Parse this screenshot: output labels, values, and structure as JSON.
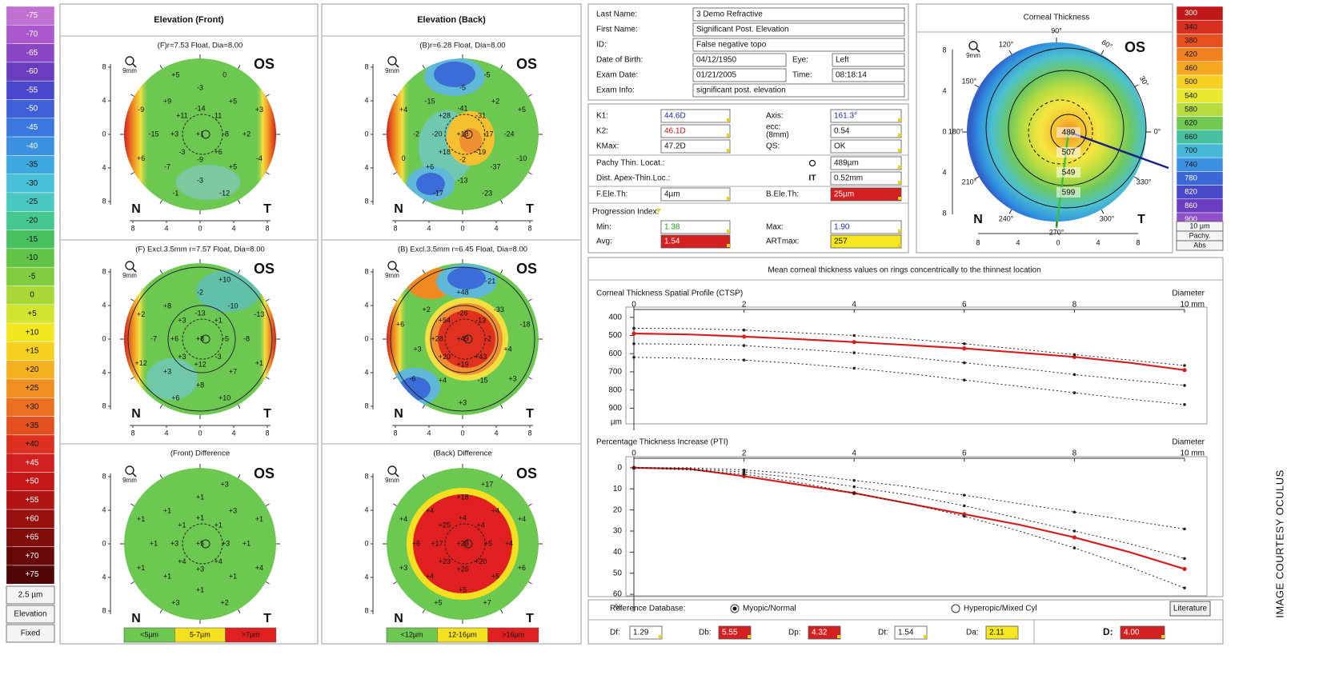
{
  "elevation_scale": {
    "steps": [
      "-75",
      "-70",
      "-65",
      "-60",
      "-55",
      "-50",
      "-45",
      "-40",
      "-35",
      "-30",
      "-25",
      "-20",
      "-15",
      "-10",
      "-5",
      "0",
      "+5",
      "+10",
      "+15",
      "+20",
      "+25",
      "+30",
      "+35",
      "+40",
      "+45",
      "+50",
      "+55",
      "+60",
      "+65",
      "+70",
      "+75"
    ],
    "unit": "2.5 µm",
    "mode": "Elevation",
    "scaling": "Fixed"
  },
  "maps_common": {
    "eye": "OS",
    "nasal": "N",
    "temporal": "T",
    "zoom": "9mm",
    "ticks": [
      "8",
      "4",
      "0",
      "4",
      "8"
    ]
  },
  "map_columns": [
    {
      "header": "Elevation (Front)"
    },
    {
      "header": "Elevation (Back)"
    }
  ],
  "maps": [
    {
      "subtitle": "(F)r=7.53 Float, Dia=8.00",
      "labels": [
        "+1",
        "-14",
        "11",
        "-8",
        "+6",
        "-9",
        "-3",
        "+3",
        "+11",
        "-3",
        "0",
        "+5",
        "+3",
        "+2",
        "-4",
        "+5",
        "-12",
        "-3",
        "-1",
        "-7",
        "+6",
        "-15",
        "-9",
        "+9",
        "+5"
      ]
    },
    {
      "subtitle": "(B)r=6.28 Float, Dia=8.00",
      "labels": [
        "+18",
        "-41",
        "-31",
        "-17",
        "-19",
        "-2",
        "+18",
        "-20",
        "+28",
        "-5",
        "-5",
        "+2",
        "+5",
        "-24",
        "-10",
        "-37",
        "-23",
        "-13",
        "-17",
        "+6",
        "0",
        "-2",
        "+4",
        "-15"
      ]
    },
    {
      "subtitle": "(F) Excl.3.5mm r=7.57 Float, Dia=8.00",
      "labels": [
        "+8",
        "-13",
        "+1",
        "-5",
        "-3",
        "+12",
        "+3",
        "+6",
        "+3",
        "-2",
        "+10",
        "-10",
        "-13",
        "-8",
        "+1",
        "+7",
        "+10",
        "+8",
        "+6",
        "+3",
        "+12",
        "-7",
        "+2",
        "+8"
      ]
    },
    {
      "subtitle": "(B) Excl.3.5mm r=6.45 Float, Dia=8.00",
      "labels": [
        "+49",
        "-26",
        "-13",
        "-2",
        "+43",
        "+19",
        "+20",
        "+28",
        "+54",
        "+48",
        "-21",
        "-33",
        "-18",
        "+4",
        "+3",
        "-15",
        "+3",
        "+4",
        "-6",
        "+3",
        "+6",
        "+2"
      ]
    },
    {
      "subtitle": "(Front) Difference",
      "labels": [
        "+5",
        "+1",
        "+1",
        "+3",
        "+4",
        "+3",
        "+4",
        "+3",
        "+1",
        "+1",
        "+3",
        "+3",
        "+1",
        "+1",
        "+4",
        "+1",
        "+2",
        "+1",
        "+3",
        "+1",
        "+1",
        "+1",
        "+1",
        "+1"
      ]
    },
    {
      "subtitle": "(Back) Difference",
      "labels": [
        "+28",
        "+4",
        "+4",
        "+5",
        "+20",
        "+26",
        "+23",
        "+17",
        "+25",
        "+18",
        "+17",
        "+4",
        "+4",
        "+4",
        "+6",
        "+5",
        "+7",
        "+5",
        "+5",
        "+4",
        "+3",
        "+6",
        "+4",
        "+4"
      ]
    }
  ],
  "difference_legends": [
    [
      "<5µm",
      "5-7µm",
      ">7µm"
    ],
    [
      "<12µm",
      "12-16µm",
      ">16µm"
    ]
  ],
  "patient": [
    {
      "label": "Last Name:",
      "value": "3 Demo Refractive"
    },
    {
      "label": "First Name:",
      "value": "Significant Post. Elevation"
    },
    {
      "label": "ID:",
      "value": "False negative topo"
    },
    {
      "label": "Date of Birth:",
      "value": "04/12/1950",
      "label2": "Eye:",
      "value2": "Left"
    },
    {
      "label": "Exam Date:",
      "value": "01/21/2005",
      "label2": "Time:",
      "value2": "08:18:14"
    },
    {
      "label": "Exam Info:",
      "value": "significant post. elevation"
    }
  ],
  "indices": {
    "keratometry": [
      {
        "label": "K1:",
        "value": "44.6D",
        "label2": "Axis:",
        "value2": "161.3°"
      },
      {
        "label": "K2:",
        "value": "46.1D",
        "label2": "ecc:",
        "note2": "(8mm)",
        "value2": "0.54"
      },
      {
        "label": "KMax:",
        "value": "47.2D",
        "label2": "QS:",
        "value2": "OK"
      }
    ],
    "pachymetry": [
      {
        "label": "Pachy Thin. Locat.:",
        "value": "489µm"
      },
      {
        "label": "Dist. Apex-Thin.Loc.:",
        "symbol": "IT",
        "value": "0.52mm"
      }
    ],
    "elevation": {
      "label": "F.Ele.Th:",
      "value": "4µm",
      "label2": "B.Ele.Th:",
      "value2": "25µm"
    },
    "progression": {
      "title": "Progression Index:",
      "rows": [
        {
          "label": "Min:",
          "value": "1.38",
          "label2": "Max:",
          "value2": "1.90"
        },
        {
          "label": "Avg:",
          "value": "1.54",
          "label2": "ARTmax:",
          "value2": "257"
        }
      ]
    }
  },
  "corneal_thickness": {
    "title": "Corneal Thickness",
    "eye": "OS",
    "nasal": "N",
    "temporal": "T",
    "zoom": "9mm",
    "ticks": [
      "8",
      "4",
      "0",
      "4",
      "8"
    ],
    "angles": [
      "90°",
      "60°",
      "30°",
      "0°",
      "330°",
      "300°",
      "270°",
      "240°",
      "210°",
      "180°",
      "150°",
      "120°"
    ],
    "ring_values": [
      "489",
      "507",
      "549",
      "599"
    ]
  },
  "pachy_scale": {
    "steps": [
      "300",
      "340",
      "380",
      "420",
      "460",
      "500",
      "540",
      "580",
      "620",
      "660",
      "700",
      "740",
      "780",
      "820",
      "860",
      "900"
    ],
    "unit": "10 µm",
    "mode": "Pachy.",
    "scaling": "Abs"
  },
  "thickness_profile": {
    "heading": "Mean corneal thickness values on rings concentrically to the thinnest location",
    "charts": [
      {
        "type": "line",
        "title": "Corneal Thickness Spatial Profile (CTSP)",
        "x_label": "Diameter",
        "x_unit": "mm",
        "y_unit": "µm",
        "x": [
          0,
          1,
          2,
          3,
          4,
          5,
          6,
          7,
          8,
          9,
          10
        ],
        "xlim": [
          0,
          10
        ],
        "xticks": [
          0,
          2,
          4,
          6,
          8,
          10
        ],
        "ylim": [
          370,
          960
        ],
        "yticks": [
          400,
          500,
          600,
          700,
          800,
          900
        ],
        "series": [
          {
            "color": "#d42020",
            "values": [
              489,
              494,
              506,
              520,
              536,
              553,
              571,
              594,
              618,
              650,
              690
            ]
          },
          {
            "color": "#222222",
            "dash": true,
            "values": [
              460,
              462,
              470,
              485,
              500,
              520,
              545,
              575,
              605,
              635,
              665
            ]
          },
          {
            "color": "#222222",
            "dash": true,
            "values": [
              545,
              548,
              555,
              575,
              595,
              620,
              650,
              680,
              715,
              745,
              775
            ]
          },
          {
            "color": "#222222",
            "dash": true,
            "values": [
              620,
              625,
              635,
              655,
              680,
              710,
              745,
              780,
              815,
              850,
              880
            ]
          }
        ]
      },
      {
        "type": "line",
        "title": "Percentage Thickness Increase (PTI)",
        "x_label": "Diameter",
        "x_unit": "mm",
        "y_unit": "%",
        "x": [
          0,
          1,
          2,
          3,
          4,
          5,
          6,
          7,
          8,
          9,
          10
        ],
        "xlim": [
          0,
          10
        ],
        "xticks": [
          0,
          2,
          4,
          6,
          8,
          10
        ],
        "ylim": [
          -3,
          63
        ],
        "yticks": [
          0,
          10,
          20,
          30,
          40,
          50,
          60
        ],
        "series": [
          {
            "color": "#d42020",
            "values": [
              0,
              0.5,
              4,
              8,
              12,
              17,
              22,
              27,
              33,
              40,
              48
            ]
          },
          {
            "color": "#222222",
            "dash": true,
            "values": [
              0,
              0,
              1,
              3,
              6,
              9,
              13,
              17,
              21,
              25,
              29
            ]
          },
          {
            "color": "#222222",
            "dash": true,
            "values": [
              0,
              0.5,
              2,
              5,
              9,
              13,
              18,
              24,
              30,
              36,
              43
            ]
          },
          {
            "color": "#222222",
            "dash": true,
            "values": [
              0,
              1,
              3,
              7,
              12,
              17,
              23,
              30,
              38,
              47,
              57
            ]
          }
        ]
      }
    ]
  },
  "reference": {
    "label": "Reference Database:",
    "options": [
      "Myopic/Normal",
      "Hyperopic/Mixed Cyl"
    ],
    "button": "Literature",
    "scores": [
      {
        "label": "Df:",
        "value": "1.29"
      },
      {
        "label": "Db:",
        "value": "5.55"
      },
      {
        "label": "Dp:",
        "value": "4.32"
      },
      {
        "label": "Dt:",
        "value": "1.54"
      },
      {
        "label": "Da:",
        "value": "2.11"
      },
      {
        "label": "D:",
        "value": "4.00"
      }
    ]
  },
  "credit": "IMAGE COURTESY OCULUS"
}
